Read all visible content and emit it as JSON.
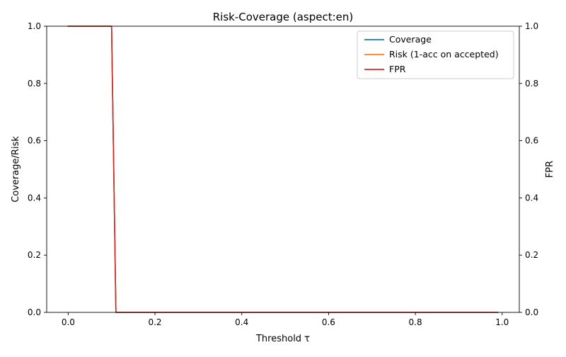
{
  "chart_data": {
    "type": "line",
    "title": "Risk-Coverage (aspect:en)",
    "xlabel": "Threshold τ",
    "ylabel_left": "Coverage/Risk",
    "ylabel_right": "FPR",
    "xlim": [
      -0.0495,
      1.0395
    ],
    "ylim_left": [
      0,
      1
    ],
    "ylim_right": [
      0,
      1
    ],
    "x_ticks": [
      0.0,
      0.2,
      0.4,
      0.6,
      0.8,
      1.0
    ],
    "x_tick_labels": [
      "0.0",
      "0.2",
      "0.4",
      "0.6",
      "0.8",
      "1.0"
    ],
    "y_ticks": [
      0.0,
      0.2,
      0.4,
      0.6,
      0.8,
      1.0
    ],
    "y_tick_labels": [
      "0.0",
      "0.2",
      "0.4",
      "0.6",
      "0.8",
      "1.0"
    ],
    "grid": false,
    "legend_position": "top-right",
    "series": [
      {
        "name": "Coverage",
        "axis": "left",
        "color": "#1f77b4",
        "x": [
          0.0,
          0.1,
          0.11,
          0.99
        ],
        "y": [
          1.0,
          1.0,
          0.0,
          0.0
        ]
      },
      {
        "name": "Risk (1-acc on accepted)",
        "axis": "left",
        "color": "#ff7f0e",
        "x": [
          0.0,
          0.1,
          0.11,
          0.99
        ],
        "y": [
          1.0,
          1.0,
          0.0,
          0.0
        ]
      },
      {
        "name": "FPR",
        "axis": "right",
        "color": "#d62728",
        "x": [
          0.0,
          0.1,
          0.11,
          0.99
        ],
        "y": [
          1.0,
          1.0,
          0.0,
          0.0
        ]
      }
    ]
  }
}
